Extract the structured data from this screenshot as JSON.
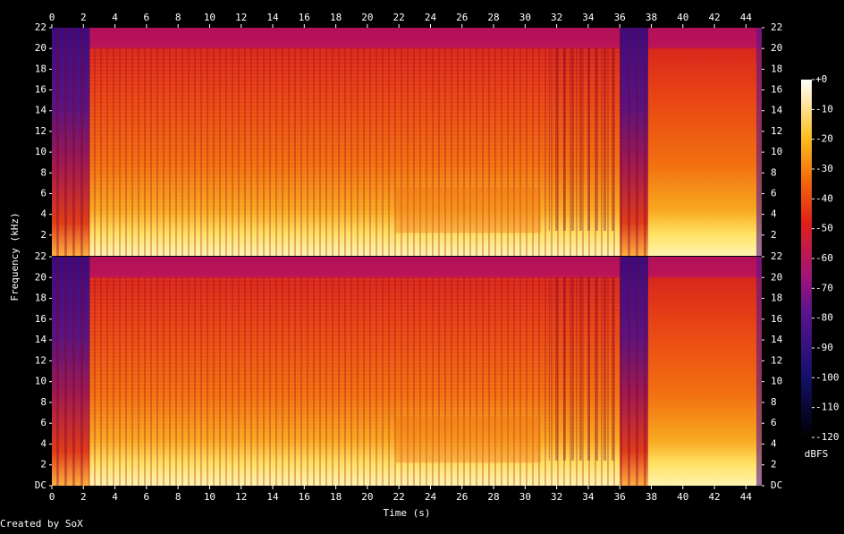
{
  "chart_data": {
    "type": "spectrogram",
    "xlabel": "Time (s)",
    "ylabel": "Frequency (kHz)",
    "xlim": [
      0,
      45
    ],
    "xticks": [
      0,
      2,
      4,
      6,
      8,
      10,
      12,
      14,
      16,
      18,
      20,
      22,
      24,
      26,
      28,
      30,
      32,
      34,
      36,
      38,
      40,
      42,
      44
    ],
    "ylim": [
      0,
      22
    ],
    "yticks": [
      {
        "value": 0,
        "label": "DC"
      },
      2,
      4,
      6,
      8,
      10,
      12,
      14,
      16,
      18,
      20,
      22
    ],
    "colorbar": {
      "label": "dBFS",
      "lim": [
        -120,
        0
      ],
      "ticks": [
        {
          "value": 0,
          "label": "+0"
        },
        -10,
        -20,
        -30,
        -40,
        -50,
        -60,
        -70,
        -80,
        -90,
        -100,
        -110,
        -120
      ]
    },
    "footer": "Created by SoX"
  }
}
